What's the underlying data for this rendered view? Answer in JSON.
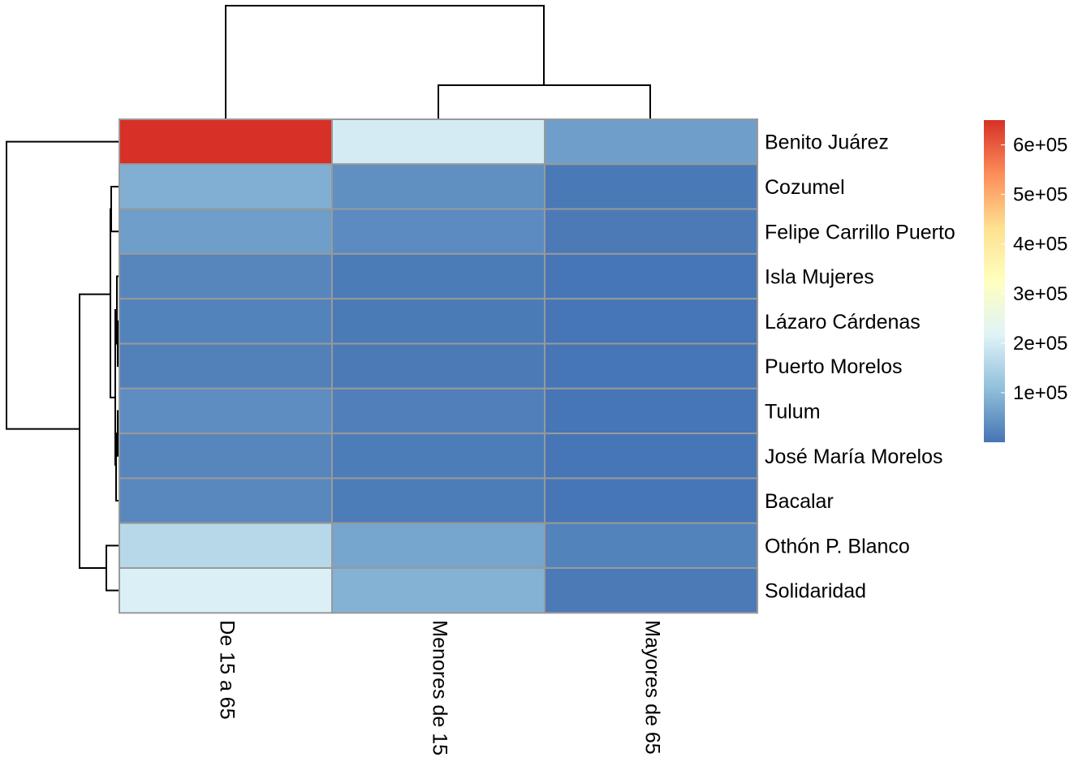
{
  "chart_data": {
    "type": "heatmap",
    "title": "",
    "rows": [
      "Benito Juárez",
      "Cozumel",
      "Felipe Carrillo Puerto",
      "Isla Mujeres",
      "Lázaro Cárdenas",
      "Puerto Morelos",
      "Tulum",
      "José María Morelos",
      "Bacalar",
      "Othón P. Blanco",
      "Solidaridad"
    ],
    "columns": [
      "De 15 a 65",
      "Menores de 15",
      "Mayores de 65"
    ],
    "values": [
      [
        650000,
        200000,
        60000
      ],
      [
        85000,
        38000,
        6000
      ],
      [
        60000,
        32000,
        8000
      ],
      [
        25000,
        10000,
        2000
      ],
      [
        20000,
        9000,
        2000
      ],
      [
        18000,
        8000,
        2000
      ],
      [
        35000,
        15000,
        2000
      ],
      [
        25000,
        12000,
        2000
      ],
      [
        28000,
        12000,
        2000
      ],
      [
        160000,
        70000,
        20000
      ],
      [
        210000,
        90000,
        8000
      ]
    ],
    "color_scale": {
      "min": 0,
      "max": 650000,
      "stops": [
        "#4575B4",
        "#91BFDB",
        "#E0F3F8",
        "#FFFFBF",
        "#FEE090",
        "#FC8D59",
        "#D73027"
      ]
    },
    "legend": {
      "position": "right",
      "ticks": [
        100000,
        200000,
        300000,
        400000,
        500000,
        600000
      ],
      "tick_labels": [
        "1e+05",
        "2e+05",
        "3e+05",
        "4e+05",
        "5e+05",
        "6e+05"
      ]
    },
    "row_dendrogram": true,
    "column_dendrogram": true
  }
}
